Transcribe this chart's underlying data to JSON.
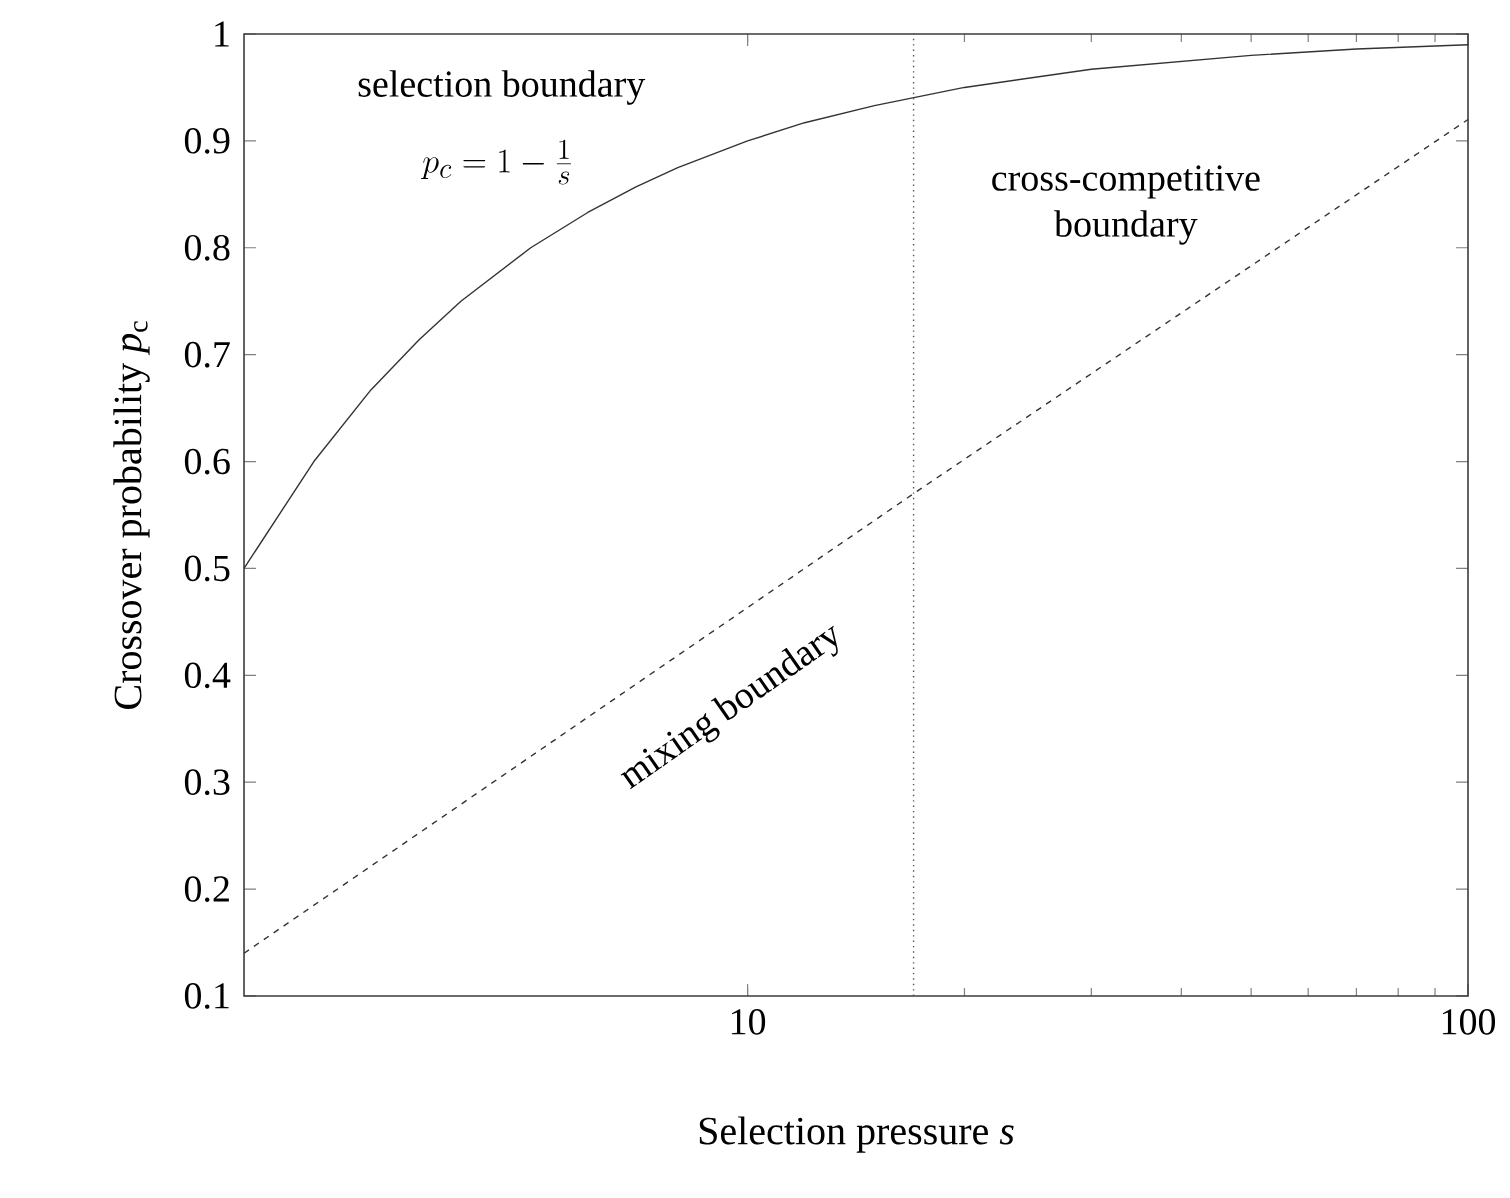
{
  "chart_data": {
    "type": "line",
    "xlabel": "Selection pressure *s*",
    "ylabel": "Crossover probability *p*$_{c}$",
    "log": "x",
    "xlim": [
      2,
      100
    ],
    "ylim": [
      0.1,
      1
    ],
    "xticks": [
      10,
      100
    ],
    "yticks": [
      0.1,
      0.2,
      0.3,
      0.4,
      0.5,
      0.6,
      0.7,
      0.8,
      0.9,
      1
    ],
    "series": [
      {
        "color": "#333333",
        "line_style": "solid",
        "x": [
          2,
          2.5,
          3,
          3.5,
          4,
          5,
          6,
          7,
          8,
          10,
          12,
          15,
          20,
          30,
          50,
          70,
          100
        ],
        "values": [
          0.5,
          0.6,
          0.667,
          0.714,
          0.75,
          0.8,
          0.833,
          0.857,
          0.875,
          0.9,
          0.917,
          0.933,
          0.95,
          0.967,
          0.98,
          0.986,
          0.99
        ]
      },
      {
        "color": "#333333",
        "line_style": "dashed",
        "x": [
          2,
          17,
          100
        ],
        "values": [
          0.14,
          0.57,
          0.92
        ]
      }
    ],
    "ref_lines": [
      {
        "axis": "x",
        "value": 17,
        "color": "#555555",
        "line_style": "dotted"
      }
    ],
    "annotations": [
      "selection boundary",
      "p_c = 1 - \\frac{1}{s}",
      "cross-competitive boundary",
      "mixing boundary"
    ]
  }
}
